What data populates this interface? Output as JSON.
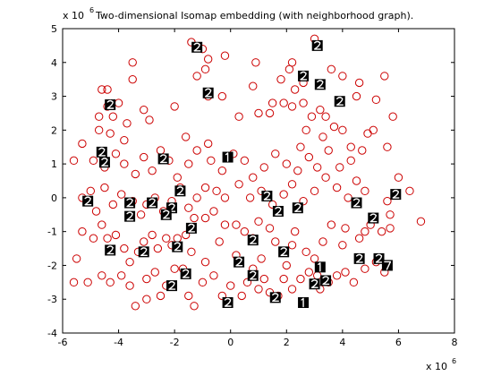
{
  "chart_data": {
    "type": "scatter",
    "title": "Two-dimensional Isomap embedding (with neighborhood graph).",
    "y_exponent_label": "x 10",
    "y_exponent_power": "6",
    "x_exponent_label": "x 10",
    "x_exponent_power": "6",
    "xlim": [
      -6,
      8
    ],
    "ylim": [
      -4,
      5
    ],
    "xticks": [
      "-6",
      "-4",
      "-2",
      "0",
      "2",
      "4",
      "6",
      "8"
    ],
    "yticks": [
      "-4",
      "-3",
      "-2",
      "-1",
      "0",
      "1",
      "2",
      "3",
      "4",
      "5"
    ],
    "grid": false,
    "colors": {
      "marker": "#cc0000",
      "thumbnail": "#000000",
      "axis": "#000000"
    },
    "points": [
      [
        -1.4,
        4.6
      ],
      [
        -1.0,
        4.4
      ],
      [
        -0.8,
        4.1
      ],
      [
        -0.2,
        4.2
      ],
      [
        -0.9,
        3.8
      ],
      [
        0.9,
        4.0
      ],
      [
        2.2,
        4.0
      ],
      [
        2.1,
        3.8
      ],
      [
        1.8,
        3.5
      ],
      [
        2.3,
        3.2
      ],
      [
        3.0,
        4.7
      ],
      [
        3.6,
        3.8
      ],
      [
        4.0,
        3.6
      ],
      [
        4.6,
        3.4
      ],
      [
        5.5,
        3.6
      ],
      [
        2.6,
        3.4
      ],
      [
        -1.2,
        3.6
      ],
      [
        -0.8,
        3.0
      ],
      [
        -3.5,
        4.0
      ],
      [
        -3.5,
        3.5
      ],
      [
        -4.6,
        3.2
      ],
      [
        -4.4,
        3.2
      ],
      [
        -4.4,
        2.7
      ],
      [
        -4.7,
        2.4
      ],
      [
        -4.2,
        2.4
      ],
      [
        -4.7,
        2.0
      ],
      [
        -4.3,
        1.9
      ],
      [
        -3.7,
        2.2
      ],
      [
        -3.1,
        2.6
      ],
      [
        -2.9,
        2.3
      ],
      [
        -2.0,
        2.7
      ],
      [
        -1.6,
        1.8
      ],
      [
        -0.8,
        1.6
      ],
      [
        0.3,
        2.4
      ],
      [
        1.0,
        2.5
      ],
      [
        1.4,
        2.5
      ],
      [
        1.5,
        2.8
      ],
      [
        1.9,
        2.8
      ],
      [
        2.2,
        2.7
      ],
      [
        2.6,
        2.8
      ],
      [
        2.9,
        2.4
      ],
      [
        3.2,
        2.6
      ],
      [
        3.4,
        2.4
      ],
      [
        3.7,
        2.1
      ],
      [
        3.3,
        1.8
      ],
      [
        2.7,
        2.0
      ],
      [
        4.0,
        2.0
      ],
      [
        4.3,
        1.5
      ],
      [
        4.7,
        1.4
      ],
      [
        4.9,
        1.9
      ],
      [
        5.1,
        2.0
      ],
      [
        5.6,
        1.5
      ],
      [
        5.8,
        2.4
      ],
      [
        6.0,
        0.6
      ],
      [
        6.4,
        0.2
      ],
      [
        6.8,
        -0.7
      ],
      [
        5.6,
        -0.1
      ],
      [
        5.7,
        -0.5
      ],
      [
        5.0,
        -0.8
      ],
      [
        5.4,
        -1.0
      ],
      [
        5.7,
        -0.9
      ],
      [
        4.8,
        -1.0
      ],
      [
        4.6,
        -1.2
      ],
      [
        4.0,
        -1.4
      ],
      [
        4.1,
        -0.9
      ],
      [
        3.6,
        -0.8
      ],
      [
        3.3,
        -1.3
      ],
      [
        3.0,
        -1.8
      ],
      [
        2.7,
        -1.6
      ],
      [
        2.2,
        -1.4
      ],
      [
        2.3,
        -1.0
      ],
      [
        1.6,
        -1.3
      ],
      [
        1.4,
        -0.9
      ],
      [
        1.0,
        -0.7
      ],
      [
        0.8,
        -1.2
      ],
      [
        0.5,
        -1.0
      ],
      [
        0.2,
        -0.8
      ],
      [
        -0.2,
        -0.8
      ],
      [
        -0.6,
        -0.4
      ],
      [
        -0.9,
        -0.6
      ],
      [
        -1.3,
        -0.6
      ],
      [
        -1.6,
        -1.1
      ],
      [
        -1.9,
        -1.2
      ],
      [
        -2.1,
        -1.4
      ],
      [
        -2.3,
        -1.2
      ],
      [
        -2.6,
        -1.5
      ],
      [
        -2.8,
        -1.1
      ],
      [
        -3.1,
        -1.3
      ],
      [
        -3.3,
        -1.6
      ],
      [
        -3.6,
        -1.9
      ],
      [
        -3.8,
        -1.5
      ],
      [
        -4.1,
        -1.1
      ],
      [
        -4.4,
        -1.2
      ],
      [
        -4.6,
        -0.8
      ],
      [
        -4.9,
        -1.2
      ],
      [
        -5.3,
        -1.0
      ],
      [
        -5.5,
        -1.8
      ],
      [
        -5.6,
        -2.5
      ],
      [
        -5.1,
        -2.5
      ],
      [
        -4.6,
        -2.3
      ],
      [
        -4.3,
        -2.5
      ],
      [
        -3.9,
        -2.3
      ],
      [
        -3.6,
        -2.6
      ],
      [
        -3.4,
        -3.2
      ],
      [
        -3.0,
        -2.4
      ],
      [
        -2.7,
        -2.2
      ],
      [
        -2.3,
        -2.6
      ],
      [
        -2.0,
        -2.1
      ],
      [
        -1.7,
        -2.1
      ],
      [
        -1.5,
        -2.9
      ],
      [
        -1.3,
        -3.2
      ],
      [
        -1.0,
        -2.5
      ],
      [
        -0.9,
        -1.9
      ],
      [
        -0.6,
        -2.3
      ],
      [
        -0.3,
        -2.9
      ],
      [
        0.0,
        -2.6
      ],
      [
        0.4,
        -2.9
      ],
      [
        0.6,
        -2.5
      ],
      [
        0.8,
        -2.1
      ],
      [
        1.0,
        -2.7
      ],
      [
        1.2,
        -2.4
      ],
      [
        1.4,
        -2.8
      ],
      [
        1.7,
        -2.9
      ],
      [
        1.9,
        -2.4
      ],
      [
        2.2,
        -2.7
      ],
      [
        2.5,
        -2.4
      ],
      [
        2.8,
        -2.2
      ],
      [
        3.1,
        -2.3
      ],
      [
        3.2,
        -2.7
      ],
      [
        3.5,
        -2.5
      ],
      [
        3.8,
        -2.3
      ],
      [
        4.1,
        -2.2
      ],
      [
        4.4,
        -2.5
      ],
      [
        4.8,
        -2.1
      ],
      [
        5.2,
        -1.9
      ],
      [
        5.5,
        -2.2
      ],
      [
        -5.3,
        0.0
      ],
      [
        -5.0,
        0.2
      ],
      [
        -4.8,
        -0.4
      ],
      [
        -4.5,
        0.3
      ],
      [
        -4.2,
        -0.2
      ],
      [
        -3.9,
        0.1
      ],
      [
        -3.5,
        -0.1
      ],
      [
        -3.2,
        -0.5
      ],
      [
        -3.0,
        -0.2
      ],
      [
        -2.7,
        0.0
      ],
      [
        -2.4,
        -0.4
      ],
      [
        -2.1,
        -0.1
      ],
      [
        -1.8,
        0.3
      ],
      [
        -1.5,
        -0.3
      ],
      [
        -1.2,
        0.0
      ],
      [
        -0.9,
        0.3
      ],
      [
        -0.5,
        0.2
      ],
      [
        -0.2,
        0.0
      ],
      [
        0.3,
        0.4
      ],
      [
        0.7,
        0.0
      ],
      [
        1.1,
        0.2
      ],
      [
        1.5,
        -0.2
      ],
      [
        1.9,
        0.1
      ],
      [
        2.2,
        0.4
      ],
      [
        2.6,
        -0.1
      ],
      [
        3.0,
        0.2
      ],
      [
        3.4,
        0.6
      ],
      [
        3.8,
        0.3
      ],
      [
        4.2,
        0.0
      ],
      [
        4.5,
        0.5
      ],
      [
        4.8,
        0.2
      ],
      [
        -5.6,
        1.1
      ],
      [
        -5.3,
        1.6
      ],
      [
        -4.9,
        1.1
      ],
      [
        -4.5,
        0.9
      ],
      [
        -4.1,
        1.3
      ],
      [
        -3.8,
        1.0
      ],
      [
        -3.4,
        0.7
      ],
      [
        -3.1,
        1.2
      ],
      [
        -2.8,
        0.8
      ],
      [
        -2.5,
        1.4
      ],
      [
        -2.2,
        1.1
      ],
      [
        -1.9,
        0.6
      ],
      [
        -1.5,
        1.0
      ],
      [
        -1.2,
        1.4
      ],
      [
        -0.7,
        1.1
      ],
      [
        -0.3,
        0.8
      ],
      [
        0.1,
        1.3
      ],
      [
        0.5,
        1.1
      ],
      [
        0.8,
        0.6
      ],
      [
        1.2,
        0.9
      ],
      [
        1.6,
        1.3
      ],
      [
        2.0,
        1.0
      ],
      [
        2.4,
        0.8
      ],
      [
        2.8,
        1.2
      ],
      [
        3.1,
        0.9
      ],
      [
        3.5,
        1.4
      ],
      [
        3.9,
        0.9
      ],
      [
        4.3,
        1.1
      ],
      [
        -1.4,
        -1.6
      ],
      [
        -0.4,
        -1.3
      ],
      [
        0.2,
        -1.7
      ],
      [
        1.1,
        -1.8
      ],
      [
        2.0,
        -2.0
      ],
      [
        -2.5,
        -2.9
      ],
      [
        -3.0,
        -3.0
      ],
      [
        4.5,
        3.0
      ],
      [
        5.2,
        2.9
      ],
      [
        -3.8,
        1.7
      ],
      [
        -4.0,
        2.8
      ],
      [
        -0.3,
        3.0
      ],
      [
        0.8,
        3.3
      ],
      [
        2.5,
        1.5
      ]
    ],
    "thumbnails": [
      {
        "x": -1.2,
        "y": 4.45,
        "glyph": "2"
      },
      {
        "x": 3.1,
        "y": 4.5,
        "glyph": "2"
      },
      {
        "x": 2.6,
        "y": 3.6,
        "glyph": "2"
      },
      {
        "x": 3.2,
        "y": 3.35,
        "glyph": "2"
      },
      {
        "x": -0.8,
        "y": 3.1,
        "glyph": "2"
      },
      {
        "x": 3.9,
        "y": 2.85,
        "glyph": "2"
      },
      {
        "x": -4.3,
        "y": 2.75,
        "glyph": "2"
      },
      {
        "x": -4.6,
        "y": 1.35,
        "glyph": "2"
      },
      {
        "x": -4.5,
        "y": 1.05,
        "glyph": "2"
      },
      {
        "x": -2.4,
        "y": 1.15,
        "glyph": "2"
      },
      {
        "x": -0.1,
        "y": 1.2,
        "glyph": "1"
      },
      {
        "x": -1.8,
        "y": 0.2,
        "glyph": "2"
      },
      {
        "x": -5.1,
        "y": -0.1,
        "glyph": "2"
      },
      {
        "x": -3.6,
        "y": -0.15,
        "glyph": "2"
      },
      {
        "x": -2.8,
        "y": -0.15,
        "glyph": "2"
      },
      {
        "x": -2.1,
        "y": -0.3,
        "glyph": "2"
      },
      {
        "x": -2.3,
        "y": -0.5,
        "glyph": "2"
      },
      {
        "x": -3.6,
        "y": -0.55,
        "glyph": "2"
      },
      {
        "x": 1.3,
        "y": 0.05,
        "glyph": "2"
      },
      {
        "x": 1.7,
        "y": -0.4,
        "glyph": "2"
      },
      {
        "x": 2.4,
        "y": -0.3,
        "glyph": "2"
      },
      {
        "x": 4.5,
        "y": -0.15,
        "glyph": "2"
      },
      {
        "x": 5.9,
        "y": 0.1,
        "glyph": "2"
      },
      {
        "x": 5.1,
        "y": -0.6,
        "glyph": "2"
      },
      {
        "x": -1.4,
        "y": -0.9,
        "glyph": "2"
      },
      {
        "x": 0.8,
        "y": -1.25,
        "glyph": "2"
      },
      {
        "x": 1.9,
        "y": -1.6,
        "glyph": "2"
      },
      {
        "x": -1.9,
        "y": -1.45,
        "glyph": "2"
      },
      {
        "x": -4.3,
        "y": -1.55,
        "glyph": "2"
      },
      {
        "x": -3.1,
        "y": -1.6,
        "glyph": "2"
      },
      {
        "x": 0.3,
        "y": -1.9,
        "glyph": "2"
      },
      {
        "x": 4.6,
        "y": -1.8,
        "glyph": "2"
      },
      {
        "x": 5.3,
        "y": -1.8,
        "glyph": "2"
      },
      {
        "x": 5.6,
        "y": -2.0,
        "glyph": "7"
      },
      {
        "x": 3.2,
        "y": -2.05,
        "glyph": "1"
      },
      {
        "x": -1.6,
        "y": -2.25,
        "glyph": "2"
      },
      {
        "x": 0.8,
        "y": -2.3,
        "glyph": "2"
      },
      {
        "x": 3.4,
        "y": -2.45,
        "glyph": "2"
      },
      {
        "x": 3.0,
        "y": -2.55,
        "glyph": "2"
      },
      {
        "x": -2.1,
        "y": -2.6,
        "glyph": "2"
      },
      {
        "x": 1.6,
        "y": -2.95,
        "glyph": "2"
      },
      {
        "x": 2.6,
        "y": -3.1,
        "glyph": "1"
      },
      {
        "x": -0.1,
        "y": -3.1,
        "glyph": "2"
      }
    ]
  }
}
